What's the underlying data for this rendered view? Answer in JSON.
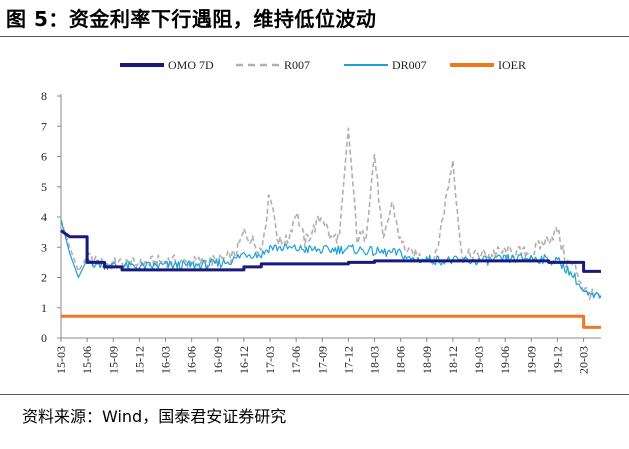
{
  "title": "图 5：资金利率下行遇阻，维持低位波动",
  "source": "资料来源：Wind，国泰君安证券研究",
  "chart_data": {
    "type": "line",
    "title": "",
    "xlabel": "",
    "ylabel": "",
    "ylim": [
      0,
      8
    ],
    "yticks": [
      "0",
      "1",
      "2",
      "3",
      "4",
      "5",
      "6",
      "7",
      "8"
    ],
    "xlim": [
      "2015-03",
      "2020-05"
    ],
    "xticks": [
      "15-03",
      "15-06",
      "15-09",
      "15-12",
      "16-03",
      "16-06",
      "16-09",
      "16-12",
      "17-03",
      "17-06",
      "17-09",
      "17-12",
      "18-03",
      "18-06",
      "18-09",
      "18-12",
      "19-03",
      "19-06",
      "19-09",
      "19-12",
      "20-03"
    ],
    "grid": false,
    "legend": "top",
    "series": [
      {
        "name": "OMO 7D",
        "color": "#1a1a7e",
        "style": "solid-thick",
        "points": [
          [
            "2015-03",
            3.55
          ],
          [
            "2015-04",
            3.35
          ],
          [
            "2015-06",
            3.35
          ],
          [
            "2015-06",
            2.5
          ],
          [
            "2015-08",
            2.5
          ],
          [
            "2015-08",
            2.35
          ],
          [
            "2015-10",
            2.35
          ],
          [
            "2015-10",
            2.25
          ],
          [
            "2016-12",
            2.25
          ],
          [
            "2016-12",
            2.35
          ],
          [
            "2017-02",
            2.35
          ],
          [
            "2017-02",
            2.45
          ],
          [
            "2017-12",
            2.45
          ],
          [
            "2017-12",
            2.5
          ],
          [
            "2018-03",
            2.5
          ],
          [
            "2018-03",
            2.55
          ],
          [
            "2019-11",
            2.55
          ],
          [
            "2019-11",
            2.5
          ],
          [
            "2020-03",
            2.5
          ],
          [
            "2020-03",
            2.2
          ],
          [
            "2020-05",
            2.2
          ]
        ]
      },
      {
        "name": "R007",
        "color": "#b0b0b0",
        "style": "dashed",
        "points": [
          [
            "2015-03",
            3.9
          ],
          [
            "2015-04",
            3.0
          ],
          [
            "2015-05",
            2.2
          ],
          [
            "2015-06",
            2.7
          ],
          [
            "2015-07",
            2.5
          ],
          [
            "2015-09",
            2.45
          ],
          [
            "2015-12",
            2.45
          ],
          [
            "2016-03",
            2.55
          ],
          [
            "2016-06",
            2.5
          ],
          [
            "2016-09",
            2.55
          ],
          [
            "2016-11",
            2.75
          ],
          [
            "2016-12",
            3.5
          ],
          [
            "2017-01",
            3.2
          ],
          [
            "2017-02",
            2.9
          ],
          [
            "2017-03",
            4.85
          ],
          [
            "2017-04",
            3.15
          ],
          [
            "2017-05",
            3.2
          ],
          [
            "2017-06",
            4.2
          ],
          [
            "2017-07",
            3.15
          ],
          [
            "2017-08",
            3.6
          ],
          [
            "2017-09",
            4.05
          ],
          [
            "2017-10",
            3.25
          ],
          [
            "2017-11",
            3.4
          ],
          [
            "2017-12",
            6.9
          ],
          [
            "2018-01",
            3.3
          ],
          [
            "2018-02",
            3.4
          ],
          [
            "2018-03",
            6.1
          ],
          [
            "2018-04",
            3.1
          ],
          [
            "2018-05",
            4.5
          ],
          [
            "2018-06",
            3.2
          ],
          [
            "2018-07",
            2.8
          ],
          [
            "2018-08",
            2.7
          ],
          [
            "2018-10",
            2.65
          ],
          [
            "2018-12",
            5.9
          ],
          [
            "2019-01",
            2.7
          ],
          [
            "2019-03",
            2.75
          ],
          [
            "2019-06",
            2.85
          ],
          [
            "2019-09",
            2.8
          ],
          [
            "2019-12",
            3.55
          ],
          [
            "2020-01",
            2.5
          ],
          [
            "2020-02",
            2.4
          ],
          [
            "2020-03",
            1.6
          ],
          [
            "2020-04",
            1.4
          ],
          [
            "2020-05",
            1.3
          ]
        ]
      },
      {
        "name": "DR007",
        "color": "#1ea0d8",
        "style": "solid",
        "points": [
          [
            "2015-03",
            3.9
          ],
          [
            "2015-04",
            2.8
          ],
          [
            "2015-05",
            2.0
          ],
          [
            "2015-06",
            2.6
          ],
          [
            "2015-07",
            2.45
          ],
          [
            "2015-09",
            2.4
          ],
          [
            "2015-12",
            2.35
          ],
          [
            "2016-03",
            2.4
          ],
          [
            "2016-06",
            2.4
          ],
          [
            "2016-09",
            2.45
          ],
          [
            "2016-11",
            2.6
          ],
          [
            "2016-12",
            2.8
          ],
          [
            "2017-02",
            2.75
          ],
          [
            "2017-03",
            3.0
          ],
          [
            "2017-06",
            2.95
          ],
          [
            "2017-09",
            2.9
          ],
          [
            "2017-12",
            2.95
          ],
          [
            "2018-03",
            2.85
          ],
          [
            "2018-06",
            2.8
          ],
          [
            "2018-07",
            2.6
          ],
          [
            "2018-09",
            2.6
          ],
          [
            "2018-12",
            2.55
          ],
          [
            "2019-03",
            2.55
          ],
          [
            "2019-06",
            2.6
          ],
          [
            "2019-09",
            2.65
          ],
          [
            "2019-12",
            2.55
          ],
          [
            "2020-01",
            2.3
          ],
          [
            "2020-02",
            2.0
          ],
          [
            "2020-03",
            1.5
          ],
          [
            "2020-04",
            1.35
          ],
          [
            "2020-05",
            1.4
          ]
        ]
      },
      {
        "name": "IOER",
        "color": "#f07820",
        "style": "solid-thick",
        "points": [
          [
            "2015-03",
            0.72
          ],
          [
            "2020-03",
            0.72
          ],
          [
            "2020-03",
            0.35
          ],
          [
            "2020-05",
            0.35
          ]
        ]
      }
    ]
  }
}
